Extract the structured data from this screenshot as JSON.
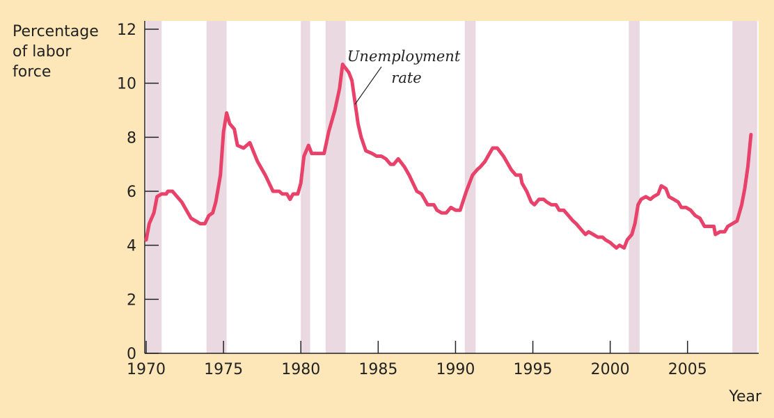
{
  "chart_data": {
    "type": "line",
    "ylabel": [
      "Percentage",
      "of labor",
      "force"
    ],
    "xlabel": "Year",
    "annotation": [
      "Unemployment",
      "rate"
    ],
    "xlim": [
      1970,
      2009.6
    ],
    "ylim": [
      0,
      12
    ],
    "xticks": [
      1970,
      1975,
      1980,
      1985,
      1990,
      1995,
      2000,
      2005
    ],
    "yticks": [
      0,
      2,
      4,
      6,
      8,
      10,
      12
    ],
    "shaded_periods": [
      [
        1970,
        1971
      ],
      [
        1973.9,
        1975.2
      ],
      [
        1980,
        1980.6
      ],
      [
        1981.6,
        1982.9
      ],
      [
        1990.6,
        1991.3
      ],
      [
        2001.2,
        2001.9
      ],
      [
        2007.9,
        2009.5
      ]
    ],
    "shade_color": "#ead9e1",
    "series": [
      {
        "name": "Unemployment rate",
        "color": "#e8416a",
        "x": [
          1970.0,
          1970.2,
          1970.5,
          1970.7,
          1971.0,
          1971.3,
          1971.4,
          1971.7,
          1972.0,
          1972.3,
          1972.6,
          1972.9,
          1973.2,
          1973.5,
          1973.8,
          1974.05,
          1974.3,
          1974.5,
          1974.8,
          1975.0,
          1975.2,
          1975.4,
          1975.7,
          1975.9,
          1976.3,
          1976.7,
          1977.2,
          1977.7,
          1978.2,
          1978.6,
          1978.8,
          1979.1,
          1979.3,
          1979.5,
          1979.8,
          1980.0,
          1980.2,
          1980.5,
          1980.7,
          1981.0,
          1981.5,
          1981.8,
          1982.2,
          1982.5,
          1982.7,
          1983.1,
          1983.3,
          1983.5,
          1983.7,
          1983.9,
          1984.2,
          1984.6,
          1984.9,
          1985.2,
          1985.5,
          1985.8,
          1986.0,
          1986.3,
          1986.7,
          1987.0,
          1987.5,
          1987.8,
          1988.2,
          1988.6,
          1988.8,
          1989.1,
          1989.4,
          1989.7,
          1990.0,
          1990.3,
          1990.7,
          1991.1,
          1991.4,
          1991.6,
          1991.9,
          1992.2,
          1992.4,
          1992.7,
          1993.1,
          1993.3,
          1993.6,
          1993.9,
          1994.2,
          1994.3,
          1994.6,
          1994.9,
          1995.1,
          1995.4,
          1995.7,
          1995.9,
          1996.2,
          1996.5,
          1996.7,
          1997.0,
          1997.3,
          1997.6,
          1997.8,
          1998.1,
          1998.4,
          1998.6,
          1998.9,
          1999.2,
          1999.5,
          1999.7,
          2000.0,
          2000.2,
          2000.4,
          2000.6,
          2000.9,
          2001.1,
          2001.4,
          2001.6,
          2001.8,
          2002.0,
          2002.3,
          2002.6,
          2002.8,
          2003.1,
          2003.3,
          2003.6,
          2003.8,
          2004.1,
          2004.4,
          2004.6,
          2004.9,
          2005.2,
          2005.5,
          2005.8,
          2006.1,
          2006.5,
          2006.7,
          2006.8,
          2007.1,
          2007.4,
          2007.6,
          2007.9,
          2008.2,
          2008.5,
          2008.7,
          2008.9,
          2009.1
        ],
        "values": [
          4.2,
          4.8,
          5.2,
          5.8,
          5.9,
          5.9,
          6.0,
          6.0,
          5.8,
          5.6,
          5.3,
          5.0,
          4.9,
          4.8,
          4.8,
          5.1,
          5.2,
          5.6,
          6.6,
          8.2,
          8.9,
          8.5,
          8.3,
          7.7,
          7.6,
          7.8,
          7.1,
          6.6,
          6.0,
          6.0,
          5.9,
          5.9,
          5.7,
          5.9,
          5.9,
          6.3,
          7.3,
          7.7,
          7.4,
          7.4,
          7.4,
          8.2,
          9.0,
          9.8,
          10.7,
          10.4,
          10.1,
          9.3,
          8.5,
          8.0,
          7.5,
          7.4,
          7.3,
          7.3,
          7.2,
          7.0,
          7.0,
          7.2,
          6.9,
          6.6,
          6.0,
          5.9,
          5.5,
          5.5,
          5.3,
          5.2,
          5.2,
          5.4,
          5.3,
          5.3,
          6.0,
          6.6,
          6.8,
          6.9,
          7.1,
          7.4,
          7.6,
          7.6,
          7.3,
          7.1,
          6.8,
          6.6,
          6.6,
          6.3,
          6.0,
          5.6,
          5.5,
          5.7,
          5.7,
          5.6,
          5.5,
          5.5,
          5.3,
          5.3,
          5.1,
          4.9,
          4.8,
          4.6,
          4.4,
          4.5,
          4.4,
          4.3,
          4.3,
          4.2,
          4.1,
          4.0,
          3.9,
          4.0,
          3.9,
          4.2,
          4.4,
          4.8,
          5.5,
          5.7,
          5.8,
          5.7,
          5.8,
          5.9,
          6.2,
          6.1,
          5.8,
          5.7,
          5.6,
          5.4,
          5.4,
          5.3,
          5.1,
          5.0,
          4.7,
          4.7,
          4.7,
          4.4,
          4.5,
          4.5,
          4.7,
          4.8,
          4.9,
          5.5,
          6.1,
          6.9,
          8.1
        ]
      }
    ]
  }
}
